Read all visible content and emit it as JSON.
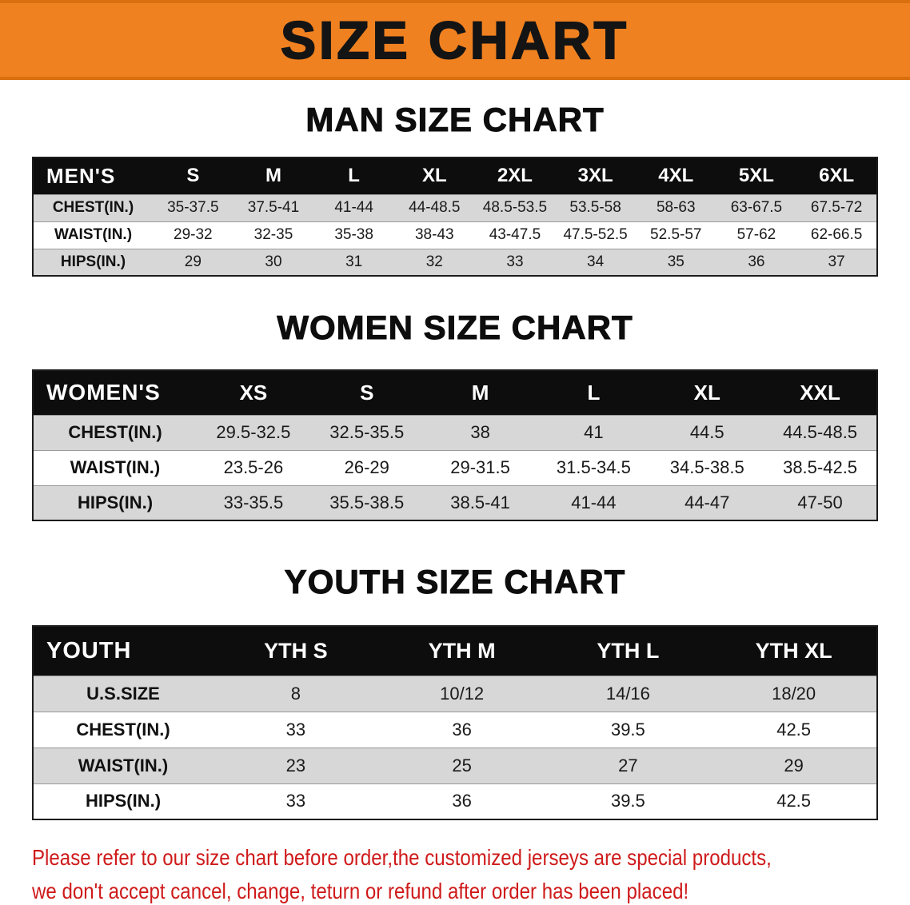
{
  "banner": {
    "title": "SIZE CHART",
    "bg_color": "#f08120"
  },
  "colors": {
    "table_header_bg": "#0d0d0d",
    "row_alt_gray": "#d7d7d7",
    "note_red": "#cf1a1a"
  },
  "tables": [
    {
      "id": "men",
      "heading": "MAN SIZE CHART",
      "header": [
        "MEN'S",
        "S",
        "M",
        "L",
        "XL",
        "2XL",
        "3XL",
        "4XL",
        "5XL",
        "6XL"
      ],
      "rows": [
        [
          "CHEST(IN.)",
          "35-37.5",
          "37.5-41",
          "41-44",
          "44-48.5",
          "48.5-53.5",
          "53.5-58",
          "58-63",
          "63-67.5",
          "67.5-72"
        ],
        [
          "WAIST(IN.)",
          "29-32",
          "32-35",
          "35-38",
          "38-43",
          "43-47.5",
          "47.5-52.5",
          "52.5-57",
          "57-62",
          "62-66.5"
        ],
        [
          "HIPS(IN.)",
          "29",
          "30",
          "31",
          "32",
          "33",
          "34",
          "35",
          "36",
          "37"
        ]
      ]
    },
    {
      "id": "women",
      "heading": "WOMEN SIZE CHART",
      "header": [
        "WOMEN'S",
        "XS",
        "S",
        "M",
        "L",
        "XL",
        "XXL"
      ],
      "rows": [
        [
          "CHEST(IN.)",
          "29.5-32.5",
          "32.5-35.5",
          "38",
          "41",
          "44.5",
          "44.5-48.5"
        ],
        [
          "WAIST(IN.)",
          "23.5-26",
          "26-29",
          "29-31.5",
          "31.5-34.5",
          "34.5-38.5",
          "38.5-42.5"
        ],
        [
          "HIPS(IN.)",
          "33-35.5",
          "35.5-38.5",
          "38.5-41",
          "41-44",
          "44-47",
          "47-50"
        ]
      ]
    },
    {
      "id": "youth",
      "heading": "YOUTH SIZE CHART",
      "header": [
        "YOUTH",
        "YTH S",
        "YTH M",
        "YTH L",
        "YTH XL"
      ],
      "rows": [
        [
          "U.S.SIZE",
          "8",
          "10/12",
          "14/16",
          "18/20"
        ],
        [
          "CHEST(IN.)",
          "33",
          "36",
          "39.5",
          "42.5"
        ],
        [
          "WAIST(IN.)",
          "23",
          "25",
          "27",
          "29"
        ],
        [
          "HIPS(IN.)",
          "33",
          "36",
          "39.5",
          "42.5"
        ]
      ]
    }
  ],
  "note": {
    "line1": "Please refer to our size chart before order,the customized jerseys are special products,",
    "line2": "we don't accept cancel, change, teturn or refund after order has been placed!"
  }
}
